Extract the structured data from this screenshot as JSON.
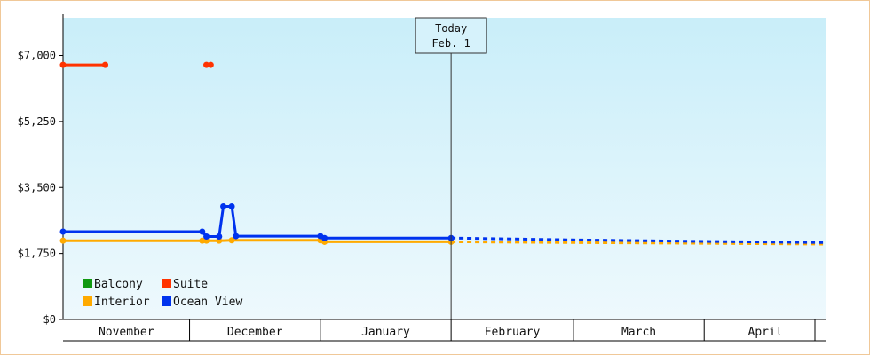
{
  "chart_data": {
    "type": "line",
    "ylim": [
      0,
      8000
    ],
    "y_ticks": [
      {
        "value": 0,
        "label": "$0"
      },
      {
        "value": 1750,
        "label": "$1,750"
      },
      {
        "value": 3500,
        "label": "$3,500"
      },
      {
        "value": 5250,
        "label": "$5,250"
      },
      {
        "value": 7000,
        "label": "$7,000"
      }
    ],
    "x_range": [
      "2023-11-01",
      "2024-04-30"
    ],
    "month_labels": [
      {
        "label": "November",
        "start": "2023-11-01",
        "end": "2023-12-01"
      },
      {
        "label": "December",
        "start": "2023-12-01",
        "end": "2024-01-01"
      },
      {
        "label": "January",
        "start": "2024-01-01",
        "end": "2024-02-01"
      },
      {
        "label": "February",
        "start": "2024-02-01",
        "end": "2024-03-01"
      },
      {
        "label": "March",
        "start": "2024-03-01",
        "end": "2024-04-01"
      },
      {
        "label": "April",
        "start": "2024-04-01",
        "end": "2024-05-01"
      }
    ],
    "today": {
      "line1": "Today",
      "line2": "Feb. 1",
      "date": "2024-02-01"
    },
    "background_gradient": [
      "#c9eef9",
      "#eef9fd"
    ],
    "series": [
      {
        "name": "Balcony",
        "color": "#119911",
        "points": []
      },
      {
        "name": "Suite",
        "color": "#ff3300",
        "points": [
          {
            "x": "2023-11-01",
            "y": 6750
          },
          {
            "x": "2023-11-11",
            "y": 6750
          },
          {
            "x": "2023-12-05",
            "y": 6750,
            "break": true
          },
          {
            "x": "2023-12-06",
            "y": 6750
          }
        ]
      },
      {
        "name": "Interior",
        "color": "#ffaa00",
        "points": [
          {
            "x": "2023-11-01",
            "y": 2090
          },
          {
            "x": "2023-12-04",
            "y": 2090
          },
          {
            "x": "2023-12-05",
            "y": 2090
          },
          {
            "x": "2023-12-08",
            "y": 2090
          },
          {
            "x": "2023-12-11",
            "y": 2100
          },
          {
            "x": "2024-01-01",
            "y": 2100
          },
          {
            "x": "2024-01-02",
            "y": 2060
          },
          {
            "x": "2024-02-01",
            "y": 2060
          }
        ],
        "forecast": [
          {
            "x": "2024-02-01",
            "y": 2060
          },
          {
            "x": "2024-03-01",
            "y": 2040
          },
          {
            "x": "2024-04-01",
            "y": 2020
          },
          {
            "x": "2024-04-30",
            "y": 2000
          }
        ]
      },
      {
        "name": "Ocean View",
        "color": "#0033ee",
        "points": [
          {
            "x": "2023-11-01",
            "y": 2330
          },
          {
            "x": "2023-12-04",
            "y": 2330
          },
          {
            "x": "2023-12-05",
            "y": 2200
          },
          {
            "x": "2023-12-08",
            "y": 2200
          },
          {
            "x": "2023-12-09",
            "y": 3000
          },
          {
            "x": "2023-12-11",
            "y": 3000
          },
          {
            "x": "2023-12-12",
            "y": 2210
          },
          {
            "x": "2024-01-01",
            "y": 2210
          },
          {
            "x": "2024-01-02",
            "y": 2160
          },
          {
            "x": "2024-02-01",
            "y": 2160
          }
        ],
        "forecast": [
          {
            "x": "2024-02-01",
            "y": 2160
          },
          {
            "x": "2024-03-01",
            "y": 2110
          },
          {
            "x": "2024-04-01",
            "y": 2070
          },
          {
            "x": "2024-04-30",
            "y": 2040
          }
        ]
      }
    ],
    "legend": [
      {
        "label": "Balcony",
        "color": "#119911"
      },
      {
        "label": "Suite",
        "color": "#ff3300"
      },
      {
        "label": "Interior",
        "color": "#ffaa00"
      },
      {
        "label": "Ocean View",
        "color": "#0033ee"
      }
    ]
  }
}
